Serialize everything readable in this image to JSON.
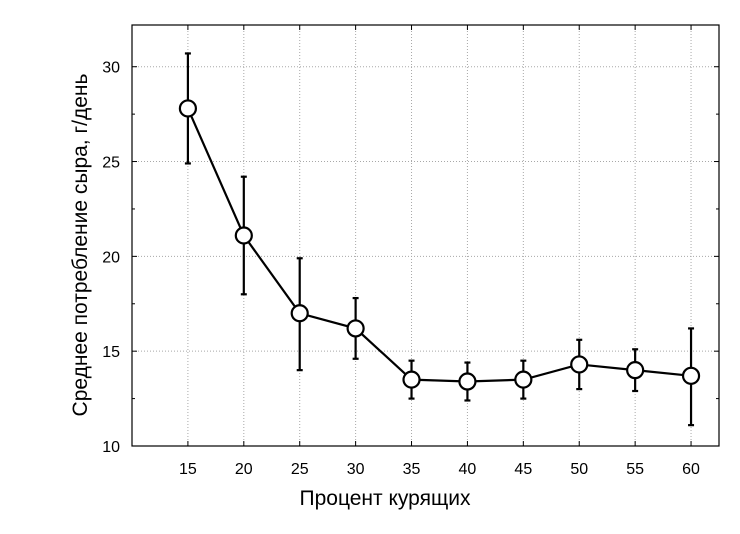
{
  "chart_data": {
    "type": "line",
    "title": "",
    "xlabel": "Процент курящих",
    "ylabel": "Среднее потребление сыра, г/день",
    "x": [
      15,
      20,
      25,
      30,
      35,
      40,
      45,
      50,
      55,
      60
    ],
    "x_tick_labels": [
      "15",
      "20",
      "25",
      "30",
      "35",
      "40",
      "45",
      "50",
      "55",
      "60"
    ],
    "y_tick_labels": [
      "10",
      "15",
      "20",
      "25",
      "30"
    ],
    "y_ticks": [
      10,
      15,
      20,
      25,
      30
    ],
    "xlim": [
      10,
      62.5
    ],
    "ylim": [
      10,
      32.2
    ],
    "grid": true,
    "series": [
      {
        "values": [
          27.8,
          21.1,
          17.0,
          16.2,
          13.5,
          13.4,
          13.5,
          14.3,
          14.0,
          13.7
        ],
        "err_low": [
          24.9,
          18.0,
          14.0,
          14.6,
          12.5,
          12.4,
          12.5,
          13.0,
          12.9,
          11.1
        ],
        "err_high": [
          30.7,
          24.2,
          19.9,
          17.8,
          14.5,
          14.4,
          14.5,
          15.6,
          15.1,
          16.2
        ]
      }
    ]
  }
}
